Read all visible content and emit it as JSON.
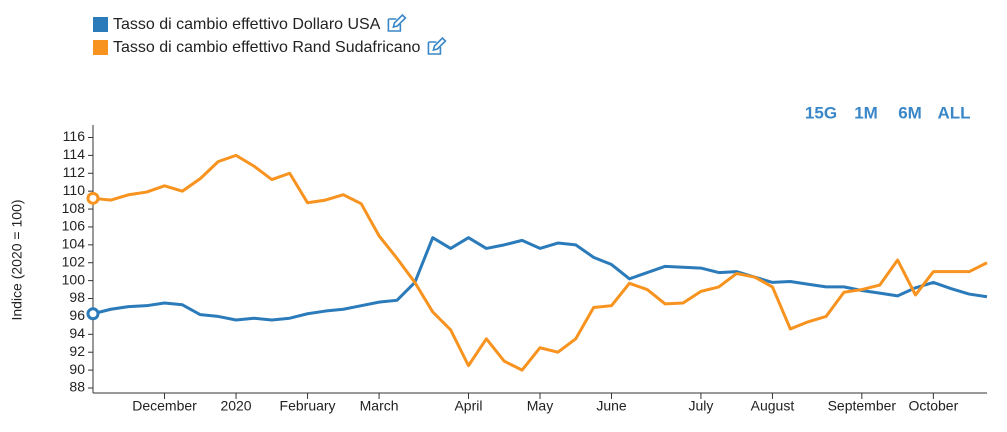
{
  "chart_data": {
    "type": "line",
    "y_label": "Indice (2020 = 100)",
    "buttons": [
      "15G",
      "1M",
      "6M",
      "ALL"
    ],
    "categories": [
      null,
      null,
      null,
      null,
      "December",
      null,
      null,
      null,
      "2020",
      null,
      null,
      null,
      "February",
      null,
      null,
      null,
      "March",
      null,
      null,
      null,
      null,
      "April",
      null,
      null,
      null,
      "May",
      null,
      null,
      null,
      "June",
      null,
      null,
      null,
      null,
      "July",
      null,
      null,
      null,
      "August",
      null,
      null,
      null,
      null,
      "September",
      null,
      null,
      null,
      "October",
      null,
      null,
      null
    ],
    "series": [
      {
        "name": "Tasso di cambio effettivo Dollaro USA",
        "color": "#2b7bba",
        "values": [
          96.3,
          96.8,
          97.1,
          97.2,
          97.5,
          97.3,
          96.2,
          96.0,
          95.6,
          95.8,
          95.6,
          95.8,
          96.3,
          96.6,
          96.8,
          97.2,
          97.6,
          97.8,
          99.8,
          104.8,
          103.6,
          104.8,
          103.6,
          104.0,
          104.5,
          103.6,
          104.2,
          104.0,
          102.6,
          101.8,
          100.2,
          100.9,
          101.6,
          101.5,
          101.4,
          100.9,
          101.0,
          100.4,
          99.8,
          99.9,
          99.6,
          99.3,
          99.3,
          98.9,
          98.6,
          98.3,
          99.2,
          99.8,
          99.1,
          98.5,
          98.2
        ]
      },
      {
        "name": "Tasso di cambio effettivo Rand Sudafricano",
        "color": "#f7931e",
        "values": [
          109.2,
          109.0,
          109.6,
          109.9,
          110.6,
          110.0,
          111.4,
          113.3,
          114.0,
          112.8,
          111.3,
          112.0,
          108.7,
          109.0,
          109.6,
          108.6,
          105.0,
          102.5,
          99.8,
          96.5,
          94.5,
          90.5,
          93.5,
          91.0,
          90.0,
          92.5,
          92.0,
          93.5,
          97.0,
          97.2,
          99.7,
          99.0,
          97.4,
          97.5,
          98.8,
          99.3,
          100.8,
          100.4,
          99.3,
          94.6,
          95.4,
          96.0,
          98.7,
          99.0,
          99.5,
          102.3,
          98.4,
          101.0,
          101.0,
          101.0,
          102.0
        ]
      }
    ],
    "ylim": [
      88,
      116.5
    ],
    "yticks": [
      88,
      90,
      92,
      94,
      96,
      98,
      100,
      102,
      104,
      106,
      108,
      110,
      112,
      114,
      116
    ]
  }
}
